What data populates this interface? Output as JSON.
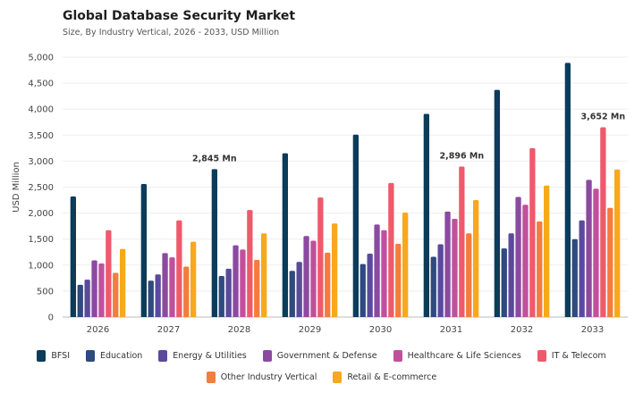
{
  "header": {
    "title": "Global Database Security Market",
    "subtitle": "Size, By Industry Vertical, 2026 - 2033, USD Million"
  },
  "chart_data": {
    "type": "bar",
    "title": "Global Database Security Market",
    "subtitle": "Size, By Industry Vertical, 2026 - 2033, USD Million",
    "xlabel": "",
    "ylabel": "USD Million",
    "ylim": [
      0,
      5000
    ],
    "yticks": [
      "0",
      "500",
      "1,000",
      "1,500",
      "2,000",
      "2,500",
      "3,000",
      "3,500",
      "4,000",
      "4,500",
      "5,000"
    ],
    "ytick_values": [
      0,
      500,
      1000,
      1500,
      2000,
      2500,
      3000,
      3500,
      4000,
      4500,
      5000
    ],
    "grid": true,
    "legend_position": "bottom",
    "categories": [
      "2026",
      "2027",
      "2028",
      "2029",
      "2030",
      "2031",
      "2032",
      "2033"
    ],
    "series": [
      {
        "name": "BFSI",
        "color": "#0b3c5a",
        "values": [
          2320,
          2560,
          2845,
          3150,
          3510,
          3910,
          4370,
          4890
        ]
      },
      {
        "name": "Education",
        "color": "#2e4a7e",
        "values": [
          620,
          700,
          790,
          890,
          1020,
          1160,
          1320,
          1500
        ]
      },
      {
        "name": "Energy & Utilities",
        "color": "#5b4a9c",
        "values": [
          720,
          820,
          930,
          1060,
          1220,
          1400,
          1610,
          1860
        ]
      },
      {
        "name": "Government & Defense",
        "color": "#8b4aa0",
        "values": [
          1090,
          1230,
          1380,
          1560,
          1780,
          2030,
          2310,
          2640
        ]
      },
      {
        "name": "Healthcare & Life Sciences",
        "color": "#c0509c",
        "values": [
          1030,
          1150,
          1300,
          1470,
          1670,
          1890,
          2160,
          2470
        ]
      },
      {
        "name": "IT & Telecom",
        "color": "#ee5a6c",
        "values": [
          1670,
          1860,
          2060,
          2300,
          2580,
          2896,
          3250,
          3652
        ]
      },
      {
        "name": "Other Industry Vertical",
        "color": "#f47c3c",
        "values": [
          850,
          970,
          1100,
          1240,
          1410,
          1610,
          1840,
          2100
        ]
      },
      {
        "name": "Retail & E-commerce",
        "color": "#f7a81b",
        "values": [
          1310,
          1450,
          1610,
          1800,
          2010,
          2250,
          2530,
          2840
        ]
      }
    ],
    "annotations": [
      {
        "text": "2,845 Mn",
        "category": "2028",
        "series": "BFSI"
      },
      {
        "text": "2,896 Mn",
        "category": "2031",
        "series": "IT & Telecom"
      },
      {
        "text": "3,652 Mn",
        "category": "2033",
        "series": "IT & Telecom"
      }
    ]
  }
}
